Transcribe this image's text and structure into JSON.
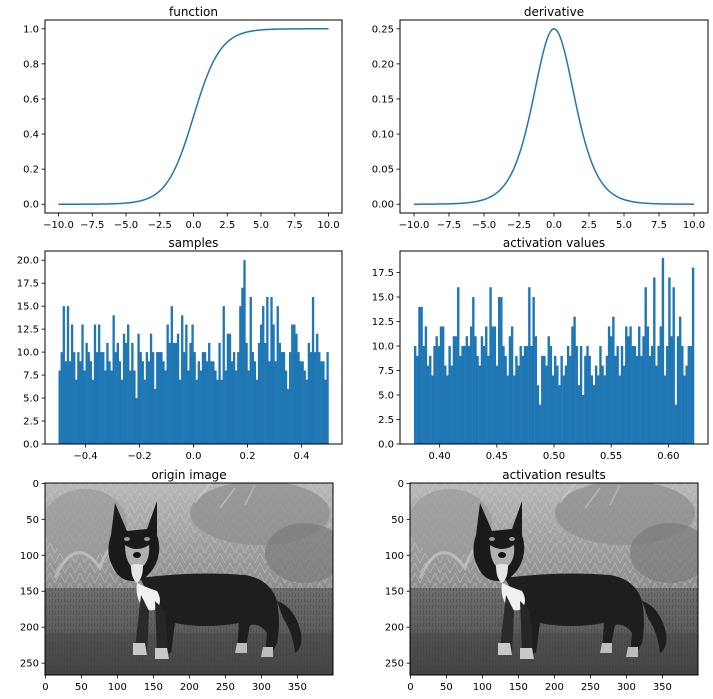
{
  "figure": {
    "background": "#ffffff",
    "series_color": "#1f77b4"
  },
  "chart_data": [
    {
      "type": "line",
      "title": "function",
      "function": "sigmoid",
      "x_range": [
        -10,
        10
      ],
      "xlim": [
        -11,
        11
      ],
      "ylim": [
        -0.05,
        1.05
      ],
      "xticks": [
        -10.0,
        -7.5,
        -5.0,
        -2.5,
        0.0,
        2.5,
        5.0,
        7.5,
        10.0
      ],
      "yticks": [
        0.0,
        0.2,
        0.4,
        0.6,
        0.8,
        1.0
      ],
      "xtick_labels": [
        "−10.0",
        "−7.5",
        "−5.0",
        "−2.5",
        "0.0",
        "2.5",
        "5.0",
        "7.5",
        "10.0"
      ],
      "ytick_labels": [
        "0.0",
        "0.2",
        "0.4",
        "0.6",
        "0.8",
        "1.0"
      ],
      "grid": false
    },
    {
      "type": "line",
      "title": "derivative",
      "function": "sigmoid_derivative",
      "x_range": [
        -10,
        10
      ],
      "xlim": [
        -11,
        11
      ],
      "ylim": [
        -0.0125,
        0.2625
      ],
      "xticks": [
        -10.0,
        -7.5,
        -5.0,
        -2.5,
        0.0,
        2.5,
        5.0,
        7.5,
        10.0
      ],
      "yticks": [
        0.0,
        0.05,
        0.1,
        0.15,
        0.2,
        0.25
      ],
      "xtick_labels": [
        "−10.0",
        "−7.5",
        "−5.0",
        "−2.5",
        "0.0",
        "2.5",
        "5.0",
        "7.5",
        "10.0"
      ],
      "ytick_labels": [
        "0.00",
        "0.05",
        "0.10",
        "0.15",
        "0.20",
        "0.25"
      ],
      "grid": false
    },
    {
      "type": "bar",
      "title": "samples",
      "subtype": "histogram",
      "bin_range": [
        -0.5,
        0.5
      ],
      "xlim": [
        -0.55,
        0.55
      ],
      "ylim": [
        0,
        21
      ],
      "xticks": [
        -0.4,
        -0.2,
        0.0,
        0.2,
        0.4
      ],
      "yticks": [
        0.0,
        2.5,
        5.0,
        7.5,
        10.0,
        12.5,
        15.0,
        17.5,
        20.0
      ],
      "xtick_labels": [
        "−0.4",
        "−0.2",
        "0.0",
        "0.2",
        "0.4"
      ],
      "ytick_labels": [
        "0.0",
        "2.5",
        "5.0",
        "7.5",
        "10.0",
        "12.5",
        "15.0",
        "17.5",
        "20.0"
      ],
      "values": [
        8,
        10,
        15,
        9,
        15,
        9,
        13,
        10,
        7,
        10,
        9,
        13,
        8,
        11,
        10,
        9,
        7,
        13,
        10,
        13,
        10,
        10,
        8,
        11,
        9,
        8,
        14,
        10,
        11,
        9,
        7,
        12,
        11,
        13,
        8,
        11,
        8,
        5,
        12,
        10,
        9,
        7,
        10,
        9,
        12,
        10,
        6,
        10,
        10,
        10,
        9,
        8,
        13,
        11,
        15,
        11,
        11,
        12,
        7,
        14,
        10,
        13,
        8,
        11,
        13,
        10,
        7,
        9,
        8,
        10,
        10,
        9,
        11,
        9,
        9,
        8,
        7,
        11,
        7,
        15,
        8,
        12,
        12,
        9,
        10,
        8,
        10,
        15,
        17,
        20,
        11,
        8,
        16,
        10,
        9,
        7,
        11,
        13,
        15,
        11,
        16,
        9,
        16,
        13,
        9,
        15,
        11,
        10,
        10,
        8,
        6,
        10,
        13,
        13,
        12,
        10,
        9,
        9,
        8,
        7,
        11,
        10,
        16,
        10,
        12,
        10,
        9,
        9,
        7,
        10
      ]
    },
    {
      "type": "bar",
      "title": "activation values",
      "subtype": "histogram",
      "bin_range": [
        0.3775,
        0.6225
      ],
      "xlim": [
        0.3653,
        0.6347
      ],
      "ylim": [
        0,
        19.7
      ],
      "xticks": [
        0.4,
        0.45,
        0.5,
        0.55,
        0.6
      ],
      "yticks": [
        0.0,
        2.5,
        5.0,
        7.5,
        10.0,
        12.5,
        15.0,
        17.5
      ],
      "xtick_labels": [
        "0.40",
        "0.45",
        "0.50",
        "0.55",
        "0.60"
      ],
      "ytick_labels": [
        "0.0",
        "2.5",
        "5.0",
        "7.5",
        "10.0",
        "12.5",
        "15.0",
        "17.5"
      ],
      "values": [
        10,
        9,
        14,
        14,
        10,
        12,
        8,
        9,
        7,
        10,
        11,
        10,
        12,
        12,
        8,
        7,
        10,
        8,
        11,
        11,
        16,
        9,
        10,
        10,
        11,
        10,
        12,
        15,
        11,
        9,
        8,
        11,
        10,
        12,
        9,
        16,
        12,
        12,
        8,
        15,
        15,
        10,
        9,
        7,
        11,
        12,
        7,
        9,
        8,
        10,
        9,
        10,
        10,
        16,
        10,
        15,
        11,
        6,
        4,
        9,
        9,
        8,
        11,
        10,
        7,
        9,
        8,
        6,
        9,
        7,
        8,
        10,
        9,
        12,
        13,
        10,
        6,
        10,
        5,
        9,
        10,
        9,
        7,
        6,
        8,
        7,
        10,
        8,
        7,
        9,
        12,
        11,
        13,
        9,
        10,
        7,
        10,
        8,
        12,
        11,
        12,
        10,
        10,
        9,
        12,
        9,
        11,
        16,
        12,
        9,
        10,
        17,
        8,
        10,
        12,
        19,
        7,
        10,
        17,
        11,
        16,
        4,
        11,
        13,
        10,
        7,
        8,
        10,
        10,
        18
      ]
    },
    {
      "type": "heatmap",
      "subtype": "image",
      "title": "origin image",
      "colormap": "gray",
      "image_width": 400,
      "image_height": 267,
      "xticks": [
        0,
        50,
        100,
        150,
        200,
        250,
        300,
        350
      ],
      "yticks": [
        0,
        50,
        100,
        150,
        200,
        250
      ],
      "xtick_labels": [
        "0",
        "50",
        "100",
        "150",
        "200",
        "250",
        "300",
        "350"
      ],
      "ytick_labels": [
        "0",
        "50",
        "100",
        "150",
        "200",
        "250"
      ]
    },
    {
      "type": "heatmap",
      "subtype": "image",
      "title": "activation results",
      "colormap": "gray",
      "image_width": 400,
      "image_height": 267,
      "xticks": [
        0,
        50,
        100,
        150,
        200,
        250,
        300,
        350
      ],
      "yticks": [
        0,
        50,
        100,
        150,
        200,
        250
      ],
      "xtick_labels": [
        "0",
        "50",
        "100",
        "150",
        "200",
        "250",
        "300",
        "350"
      ],
      "ytick_labels": [
        "0",
        "50",
        "100",
        "150",
        "200",
        "250"
      ]
    }
  ]
}
